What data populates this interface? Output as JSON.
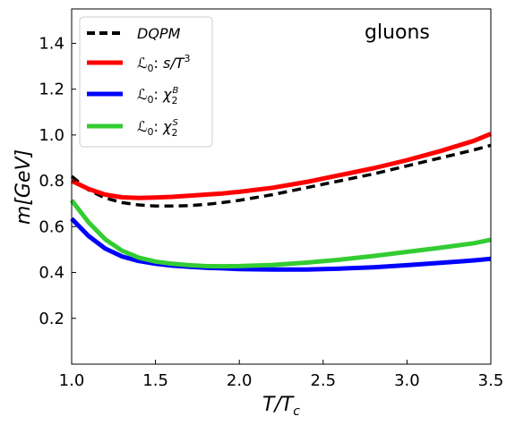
{
  "chart_data": {
    "type": "line",
    "annotation": "gluons",
    "xlabel": "T/T",
    "xlabel_sub": "c",
    "ylabel": "m[GeV]",
    "xlim": [
      1.0,
      3.5
    ],
    "ylim": [
      0.0,
      1.55
    ],
    "x_ticks": [
      "1.0",
      "1.5",
      "2.0",
      "2.5",
      "3.0",
      "3.5"
    ],
    "y_ticks": [
      "0.2",
      "0.4",
      "0.6",
      "0.8",
      "1.0",
      "1.2",
      "1.4"
    ],
    "grid": false,
    "legend_position": "top-left",
    "series": [
      {
        "name": "DQPM",
        "color": "#000000",
        "dash": "dashed",
        "x": [
          1.0,
          1.1,
          1.2,
          1.3,
          1.4,
          1.5,
          1.6,
          1.7,
          1.8,
          1.9,
          2.0,
          2.2,
          2.4,
          2.6,
          2.8,
          3.0,
          3.2,
          3.4,
          3.5
        ],
        "y": [
          0.82,
          0.76,
          0.725,
          0.705,
          0.695,
          0.69,
          0.69,
          0.692,
          0.697,
          0.705,
          0.715,
          0.74,
          0.77,
          0.8,
          0.83,
          0.865,
          0.9,
          0.935,
          0.955
        ]
      },
      {
        "name": "s/T",
        "name_prefix": "ℒ",
        "name_prefix_sub": "0",
        "name_sup": "3",
        "color": "#ff0000",
        "dash": "solid",
        "x": [
          1.0,
          1.1,
          1.2,
          1.3,
          1.4,
          1.5,
          1.6,
          1.7,
          1.8,
          1.9,
          2.0,
          2.2,
          2.4,
          2.6,
          2.8,
          3.0,
          3.2,
          3.4,
          3.5
        ],
        "y": [
          0.8,
          0.765,
          0.74,
          0.728,
          0.725,
          0.727,
          0.73,
          0.735,
          0.74,
          0.745,
          0.752,
          0.77,
          0.795,
          0.825,
          0.855,
          0.89,
          0.93,
          0.975,
          1.005
        ]
      },
      {
        "name": "χ",
        "name_prefix": "ℒ",
        "name_prefix_sub": "0",
        "name_sub": "2",
        "name_sup": "B",
        "color": "#0000ff",
        "dash": "solid",
        "x": [
          1.0,
          1.1,
          1.2,
          1.3,
          1.4,
          1.5,
          1.6,
          1.7,
          1.8,
          1.9,
          2.0,
          2.2,
          2.4,
          2.6,
          2.8,
          3.0,
          3.2,
          3.4,
          3.5
        ],
        "y": [
          0.635,
          0.56,
          0.505,
          0.47,
          0.45,
          0.438,
          0.43,
          0.425,
          0.421,
          0.418,
          0.415,
          0.413,
          0.413,
          0.417,
          0.423,
          0.432,
          0.442,
          0.453,
          0.46
        ]
      },
      {
        "name": "χ",
        "name_prefix": "ℒ",
        "name_prefix_sub": "0",
        "name_sub": "2",
        "name_sup": "S",
        "color": "#33cc33",
        "dash": "solid",
        "x": [
          1.0,
          1.1,
          1.2,
          1.3,
          1.4,
          1.5,
          1.6,
          1.7,
          1.8,
          1.9,
          2.0,
          2.2,
          2.4,
          2.6,
          2.8,
          3.0,
          3.2,
          3.4,
          3.5
        ],
        "y": [
          0.715,
          0.62,
          0.545,
          0.495,
          0.465,
          0.448,
          0.438,
          0.432,
          0.428,
          0.427,
          0.428,
          0.433,
          0.443,
          0.456,
          0.472,
          0.49,
          0.508,
          0.528,
          0.543
        ]
      }
    ]
  }
}
